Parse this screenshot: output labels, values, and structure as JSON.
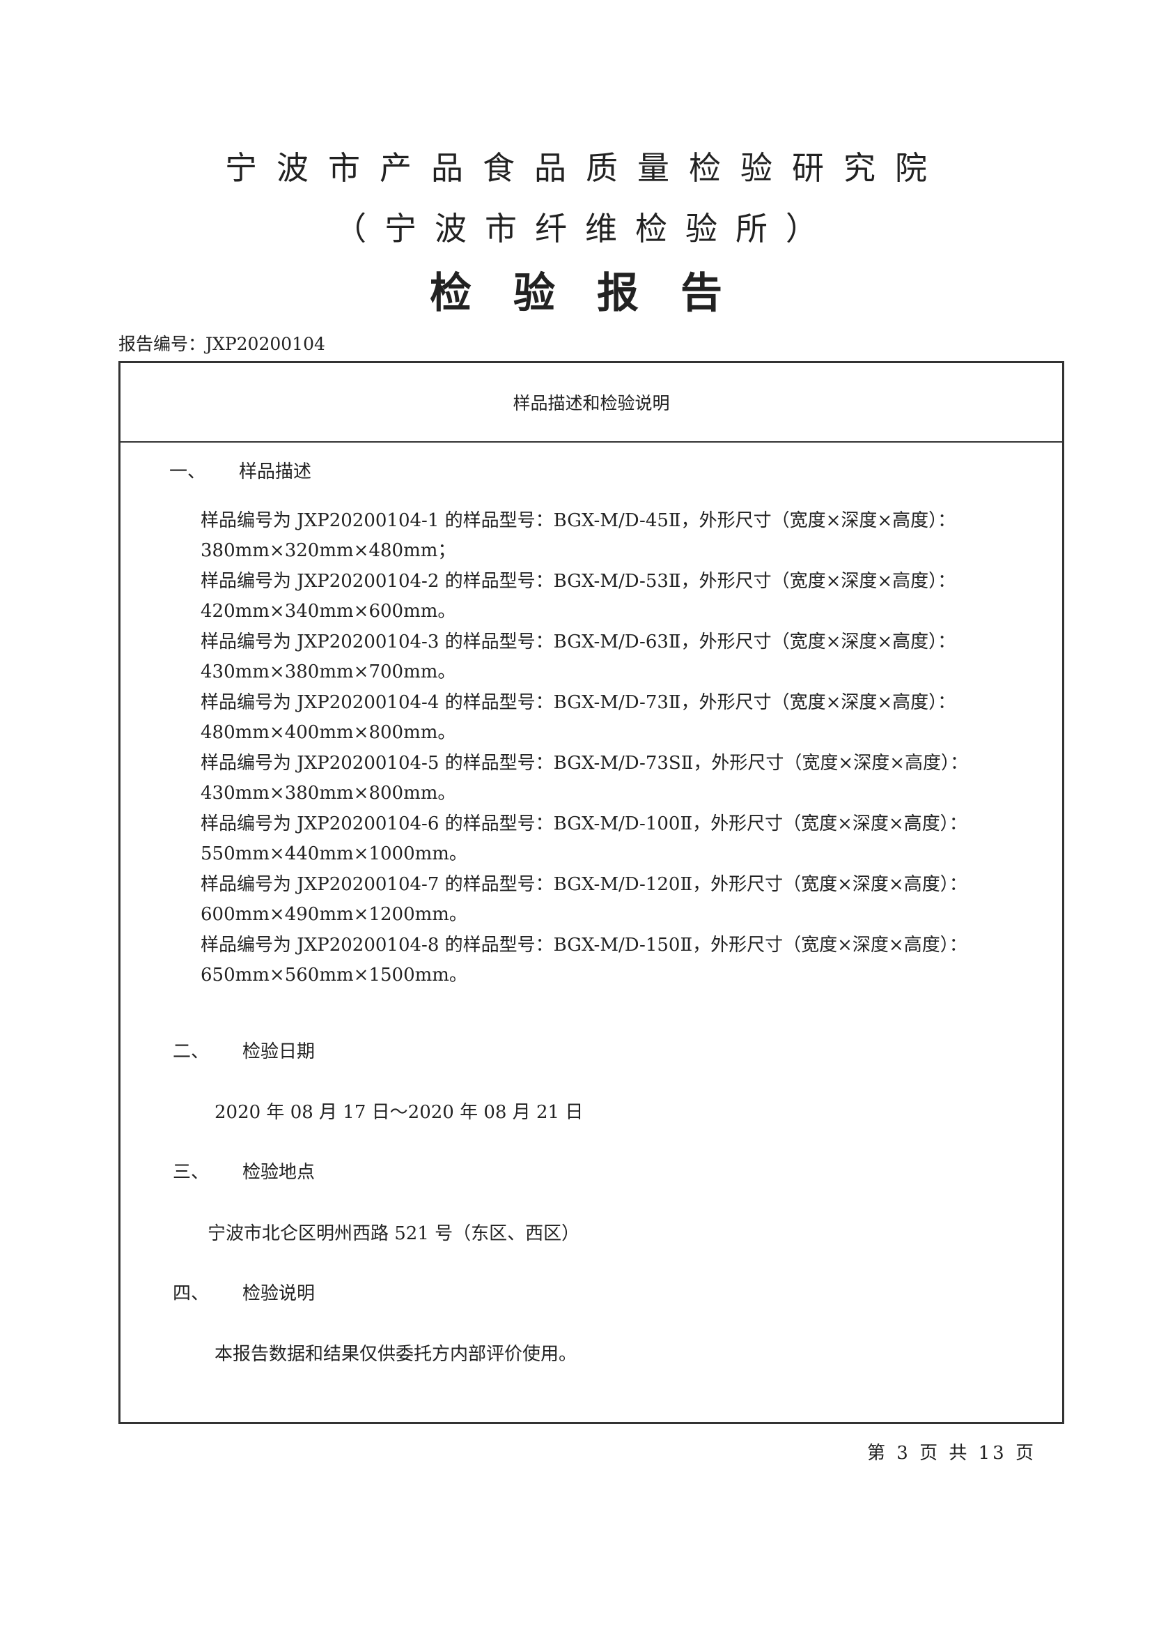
{
  "header": {
    "institute": "宁波市产品食品质量检验研究院",
    "sub_institute": "（宁波市纤维检验所）",
    "report_title": "检验报告",
    "report_number": "报告编号：JXP20200104"
  },
  "box": {
    "title": "样品描述和检验说明",
    "sections": [
      {
        "num": "一、",
        "title": "样品描述"
      },
      {
        "num": "二、",
        "title": "检验日期"
      },
      {
        "num": "三、",
        "title": "检验地点"
      },
      {
        "num": "四、",
        "title": "检验说明"
      }
    ],
    "samples": [
      {
        "desc": "样品编号为 JXP20200104-1 的样品型号：BGX-M/D-45Ⅱ，外形尺寸（宽度×深度×高度）：",
        "size": "380mm×320mm×480mm；"
      },
      {
        "desc": "样品编号为 JXP20200104-2 的样品型号：BGX-M/D-53Ⅱ，外形尺寸（宽度×深度×高度）：",
        "size": "420mm×340mm×600mm。"
      },
      {
        "desc": "样品编号为 JXP20200104-3 的样品型号：BGX-M/D-63Ⅱ，外形尺寸（宽度×深度×高度）：",
        "size": "430mm×380mm×700mm。"
      },
      {
        "desc": "样品编号为 JXP20200104-4 的样品型号：BGX-M/D-73Ⅱ，外形尺寸（宽度×深度×高度）：",
        "size": "480mm×400mm×800mm。"
      },
      {
        "desc": "样品编号为 JXP20200104-5 的样品型号：BGX-M/D-73SⅡ，外形尺寸（宽度×深度×高度）：",
        "size": "430mm×380mm×800mm。"
      },
      {
        "desc": "样品编号为 JXP20200104-6 的样品型号：BGX-M/D-100Ⅱ，外形尺寸（宽度×深度×高度）：",
        "size": "550mm×440mm×1000mm。"
      },
      {
        "desc": "样品编号为 JXP20200104-7 的样品型号：BGX-M/D-120Ⅱ，外形尺寸（宽度×深度×高度）：",
        "size": "600mm×490mm×1200mm。"
      },
      {
        "desc": "样品编号为 JXP20200104-8 的样品型号：BGX-M/D-150Ⅱ，外形尺寸（宽度×深度×高度）：",
        "size": "650mm×560mm×1500mm。"
      }
    ],
    "date": "2020 年 08 月 17 日～2020 年 08 月 21 日",
    "location": "宁波市北仑区明州西路 521 号（东区、西区）",
    "note": "本报告数据和结果仅供委托方内部评价使用。"
  },
  "footer": {
    "page": "第 3 页 共 13 页"
  }
}
